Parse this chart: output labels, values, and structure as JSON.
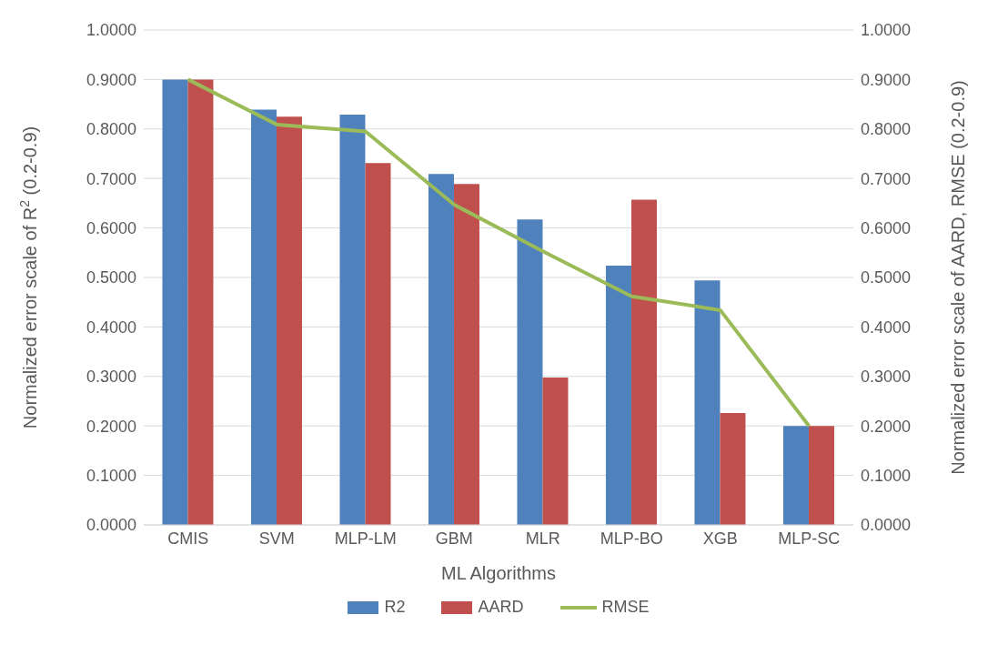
{
  "chart_data": {
    "type": "bar",
    "xlabel": "ML Algorithms",
    "ylabel": "Normalized error scale of R$^{2}$ (0.2-0.9)",
    "y2label": "Normalized error scale of AARD, RMSE (0.2-0.9)",
    "categories": [
      "CMIS",
      "SVM",
      "MLP-LM",
      "GBM",
      "MLR",
      "MLP-BO",
      "XGB",
      "MLP-SC"
    ],
    "series": [
      {
        "name": "R2",
        "color": "#4f81bd",
        "values": [
          0.9,
          0.839,
          0.829,
          0.709,
          0.617,
          0.524,
          0.494,
          0.2
        ]
      },
      {
        "name": "AARD",
        "color": "#c0504d",
        "values": [
          0.9,
          0.825,
          0.731,
          0.689,
          0.298,
          0.657,
          0.226,
          0.2
        ]
      },
      {
        "name": "RMSE",
        "type": "line",
        "axis": "y2",
        "color": "#9bbb59",
        "values": [
          0.9,
          0.809,
          0.795,
          0.647,
          0.553,
          0.462,
          0.434,
          0.2
        ]
      }
    ],
    "ylim": [
      0,
      1
    ],
    "yticks": [
      {
        "value": 0,
        "label": "0.0000"
      },
      {
        "value": 0.1,
        "label": "0.1000"
      },
      {
        "value": 0.2,
        "label": "0.2000"
      },
      {
        "value": 0.3,
        "label": "0.3000"
      },
      {
        "value": 0.4,
        "label": "0.4000"
      },
      {
        "value": 0.5,
        "label": "0.5000"
      },
      {
        "value": 0.6,
        "label": "0.6000"
      },
      {
        "value": 0.7,
        "label": "0.7000"
      },
      {
        "value": 0.8,
        "label": "0.8000"
      },
      {
        "value": 0.9,
        "label": "0.9000"
      },
      {
        "value": 1,
        "label": "1.0000"
      }
    ],
    "y2lim": [
      0,
      1
    ],
    "y2ticks": [
      {
        "value": 0,
        "label": "0.0000"
      },
      {
        "value": 0.1,
        "label": "0.1000"
      },
      {
        "value": 0.2,
        "label": "0.2000"
      },
      {
        "value": 0.3,
        "label": "0.3000"
      },
      {
        "value": 0.4,
        "label": "0.4000"
      },
      {
        "value": 0.5,
        "label": "0.5000"
      },
      {
        "value": 0.6,
        "label": "0.6000"
      },
      {
        "value": 0.7,
        "label": "0.7000"
      },
      {
        "value": 0.8,
        "label": "0.8000"
      },
      {
        "value": 0.9,
        "label": "0.9000"
      },
      {
        "value": 1,
        "label": "1.0000"
      }
    ],
    "grid": "y",
    "legend": "bottom",
    "marker": "none"
  }
}
